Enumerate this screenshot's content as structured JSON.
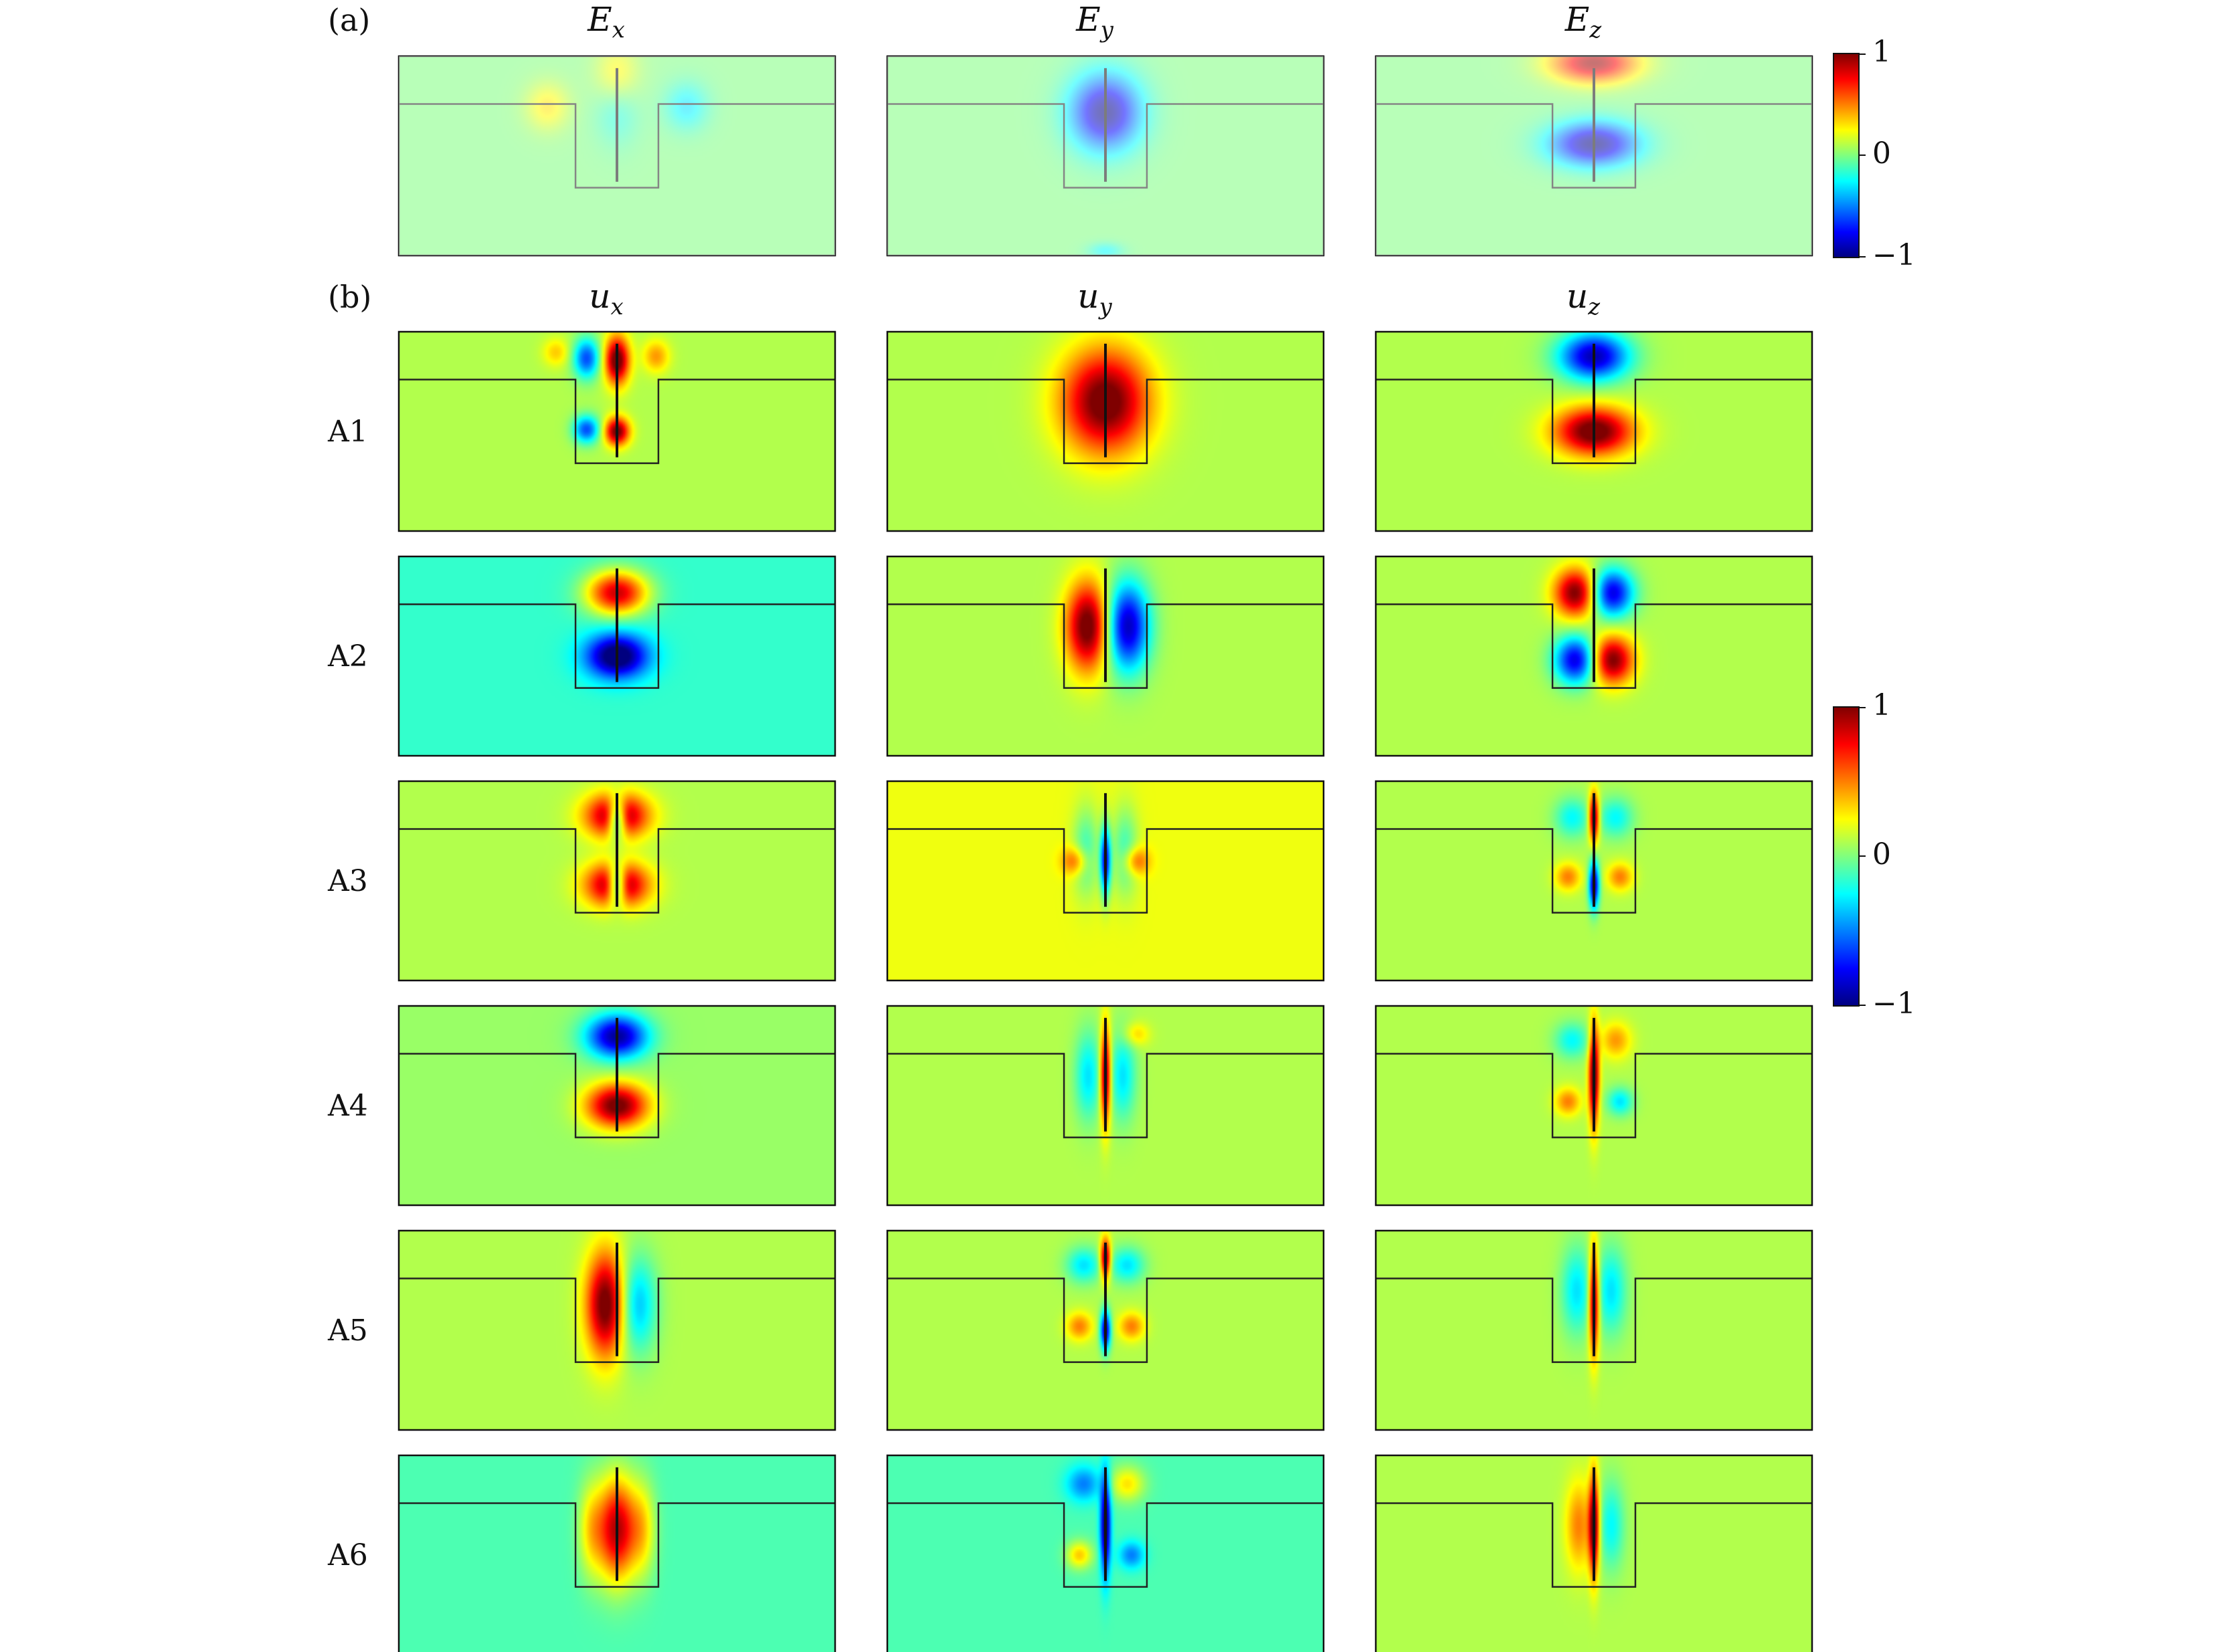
{
  "panel_a": {
    "label": "(a)",
    "columns": [
      {
        "var": "E",
        "sub": "x"
      },
      {
        "var": "E",
        "sub": "y"
      },
      {
        "var": "E",
        "sub": "z"
      }
    ],
    "fields": [
      [
        {
          "u": 0.0,
          "v": 0.1,
          "sx": 0.05,
          "sy": 0.16,
          "a": 0.35
        },
        {
          "u": 0.0,
          "v": 0.25,
          "sx": 0.05,
          "sy": 0.18,
          "a": -0.25
        },
        {
          "u": -0.16,
          "v": 0.25,
          "sx": 0.05,
          "sy": 0.12,
          "a": 0.3
        },
        {
          "u": 0.16,
          "v": 0.25,
          "sx": 0.05,
          "sy": 0.12,
          "a": -0.3
        }
      ],
      [
        {
          "u": 0.0,
          "v": 0.28,
          "sx": 0.08,
          "sy": 0.19,
          "a": -1.0
        },
        {
          "u": 0.0,
          "v": 0.98,
          "sx": 0.04,
          "sy": 0.04,
          "a": -0.25
        }
      ],
      [
        {
          "u": 0.0,
          "v": 0.03,
          "sx": 0.1,
          "sy": 0.1,
          "a": 0.95
        },
        {
          "u": 0.0,
          "v": 0.44,
          "sx": 0.1,
          "sy": 0.11,
          "a": -1.0
        }
      ]
    ],
    "background": [
      0.0,
      0.0,
      0.0
    ],
    "colorbar": {
      "max_label": "1",
      "mid_label": "0",
      "min_label": "−1"
    }
  },
  "panel_b": {
    "label": "(b)",
    "columns": [
      {
        "var": "u",
        "sub": "x"
      },
      {
        "var": "u",
        "sub": "y"
      },
      {
        "var": "u",
        "sub": "z"
      }
    ],
    "rows": [
      {
        "label": "A1",
        "background": [
          0.1,
          0.1,
          0.1
        ],
        "fields": [
          [
            {
              "u": 0.0,
              "v": 0.14,
              "sx": 0.028,
              "sy": 0.12,
              "a": 1.0
            },
            {
              "u": 0.0,
              "v": 0.5,
              "sx": 0.028,
              "sy": 0.07,
              "a": 0.95
            },
            {
              "u": -0.07,
              "v": 0.13,
              "sx": 0.03,
              "sy": 0.1,
              "a": -0.7
            },
            {
              "u": -0.07,
              "v": 0.49,
              "sx": 0.03,
              "sy": 0.07,
              "a": -0.7
            },
            {
              "u": 0.09,
              "v": 0.12,
              "sx": 0.03,
              "sy": 0.08,
              "a": 0.35
            },
            {
              "u": -0.14,
              "v": 0.1,
              "sx": 0.03,
              "sy": 0.07,
              "a": 0.25
            }
          ],
          [
            {
              "u": 0.0,
              "v": 0.35,
              "sx": 0.1,
              "sy": 0.26,
              "a": 1.0
            }
          ],
          [
            {
              "u": 0.0,
              "v": 0.12,
              "sx": 0.08,
              "sy": 0.12,
              "a": -1.0
            },
            {
              "u": 0.0,
              "v": 0.5,
              "sx": 0.09,
              "sy": 0.12,
              "a": 1.0
            }
          ]
        ]
      },
      {
        "label": "A2",
        "background": [
          -0.15,
          0.1,
          0.1
        ],
        "fields": [
          [
            {
              "u": 0.0,
              "v": 0.18,
              "sx": 0.07,
              "sy": 0.11,
              "a": 1.0
            },
            {
              "u": 0.0,
              "v": 0.5,
              "sx": 0.07,
              "sy": 0.11,
              "a": -1.0
            }
          ],
          [
            {
              "u": -0.04,
              "v": 0.35,
              "sx": 0.05,
              "sy": 0.22,
              "a": 1.0
            },
            {
              "u": 0.05,
              "v": 0.35,
              "sx": 0.05,
              "sy": 0.22,
              "a": -1.0
            }
          ],
          [
            {
              "u": -0.04,
              "v": 0.18,
              "sx": 0.05,
              "sy": 0.12,
              "a": 0.95
            },
            {
              "u": 0.04,
              "v": 0.18,
              "sx": 0.05,
              "sy": 0.12,
              "a": -0.95
            },
            {
              "u": -0.04,
              "v": 0.52,
              "sx": 0.05,
              "sy": 0.12,
              "a": -0.95
            },
            {
              "u": 0.04,
              "v": 0.52,
              "sx": 0.05,
              "sy": 0.12,
              "a": 0.95
            }
          ]
        ]
      },
      {
        "label": "A3",
        "background": [
          0.1,
          0.22,
          0.1
        ],
        "fields": [
          [
            {
              "u": 0.0,
              "v": 0.17,
              "sx": 0.07,
              "sy": 0.11,
              "a": 1.0
            },
            {
              "u": 0.0,
              "v": 0.52,
              "sx": 0.07,
              "sy": 0.11,
              "a": 1.0
            },
            {
              "u": 0.0,
              "v": 0.18,
              "sx": 0.022,
              "sy": 0.1,
              "a": -1.0
            },
            {
              "u": 0.0,
              "v": 0.52,
              "sx": 0.022,
              "sy": 0.1,
              "a": -1.0
            }
          ],
          [
            {
              "u": -0.045,
              "v": 0.35,
              "sx": 0.03,
              "sy": 0.22,
              "a": -0.35
            },
            {
              "u": 0.045,
              "v": 0.35,
              "sx": 0.03,
              "sy": 0.22,
              "a": -0.35
            },
            {
              "u": 0.0,
              "v": 0.4,
              "sx": 0.012,
              "sy": 0.17,
              "a": -0.95
            },
            {
              "u": -0.07,
              "v": 0.4,
              "sx": 0.03,
              "sy": 0.07,
              "a": 0.4
            },
            {
              "u": 0.07,
              "v": 0.4,
              "sx": 0.03,
              "sy": 0.07,
              "a": 0.4
            }
          ],
          [
            {
              "u": 0.0,
              "v": 0.18,
              "sx": 0.012,
              "sy": 0.12,
              "a": 1.0
            },
            {
              "u": 0.0,
              "v": 0.52,
              "sx": 0.012,
              "sy": 0.12,
              "a": -1.0
            },
            {
              "u": -0.05,
              "v": 0.18,
              "sx": 0.04,
              "sy": 0.1,
              "a": -0.35
            },
            {
              "u": 0.05,
              "v": 0.18,
              "sx": 0.04,
              "sy": 0.1,
              "a": -0.35
            },
            {
              "u": -0.06,
              "v": 0.48,
              "sx": 0.03,
              "sy": 0.07,
              "a": 0.4
            },
            {
              "u": 0.06,
              "v": 0.48,
              "sx": 0.03,
              "sy": 0.07,
              "a": 0.4
            }
          ]
        ]
      },
      {
        "label": "A4",
        "background": [
          0.05,
          0.1,
          0.1
        ],
        "fields": [
          [
            {
              "u": 0.0,
              "v": 0.15,
              "sx": 0.07,
              "sy": 0.11,
              "a": -1.0
            },
            {
              "u": 0.0,
              "v": 0.5,
              "sx": 0.07,
              "sy": 0.11,
              "a": 1.0
            }
          ],
          [
            {
              "u": 0.0,
              "v": 0.35,
              "sx": 0.012,
              "sy": 0.24,
              "a": 1.0
            },
            {
              "u": -0.04,
              "v": 0.35,
              "sx": 0.03,
              "sy": 0.22,
              "a": -0.4
            },
            {
              "u": 0.04,
              "v": 0.35,
              "sx": 0.03,
              "sy": 0.22,
              "a": -0.4
            },
            {
              "u": 0.07,
              "v": 0.14,
              "sx": 0.03,
              "sy": 0.06,
              "a": 0.25
            }
          ],
          [
            {
              "u": 0.0,
              "v": 0.35,
              "sx": 0.012,
              "sy": 0.25,
              "a": 1.0
            },
            {
              "u": -0.05,
              "v": 0.17,
              "sx": 0.04,
              "sy": 0.09,
              "a": -0.35
            },
            {
              "u": 0.05,
              "v": 0.17,
              "sx": 0.035,
              "sy": 0.09,
              "a": 0.35
            },
            {
              "u": -0.06,
              "v": 0.48,
              "sx": 0.03,
              "sy": 0.07,
              "a": 0.4
            },
            {
              "u": 0.06,
              "v": 0.48,
              "sx": 0.03,
              "sy": 0.07,
              "a": -0.4
            }
          ]
        ]
      },
      {
        "label": "A5",
        "background": [
          0.1,
          0.1,
          0.1
        ],
        "fields": [
          [
            {
              "u": -0.025,
              "v": 0.37,
              "sx": 0.045,
              "sy": 0.26,
              "a": 1.0
            },
            {
              "u": 0.045,
              "v": 0.37,
              "sx": 0.045,
              "sy": 0.24,
              "a": -0.5
            }
          ],
          [
            {
              "u": 0.0,
              "v": 0.14,
              "sx": 0.012,
              "sy": 0.1,
              "a": 1.0
            },
            {
              "u": 0.0,
              "v": 0.5,
              "sx": 0.012,
              "sy": 0.1,
              "a": -1.0
            },
            {
              "u": -0.05,
              "v": 0.17,
              "sx": 0.04,
              "sy": 0.09,
              "a": -0.4
            },
            {
              "u": 0.05,
              "v": 0.17,
              "sx": 0.04,
              "sy": 0.09,
              "a": -0.4
            },
            {
              "u": -0.06,
              "v": 0.48,
              "sx": 0.03,
              "sy": 0.07,
              "a": 0.4
            },
            {
              "u": 0.06,
              "v": 0.48,
              "sx": 0.03,
              "sy": 0.07,
              "a": 0.4
            }
          ],
          [
            {
              "u": 0.0,
              "v": 0.35,
              "sx": 0.012,
              "sy": 0.26,
              "a": 1.0
            },
            {
              "u": -0.04,
              "v": 0.3,
              "sx": 0.035,
              "sy": 0.22,
              "a": -0.4
            },
            {
              "u": 0.04,
              "v": 0.3,
              "sx": 0.035,
              "sy": 0.22,
              "a": -0.4
            }
          ]
        ]
      },
      {
        "label": "A6",
        "background": [
          -0.1,
          -0.1,
          0.1
        ],
        "fields": [
          [
            {
              "u": 0.0,
              "v": 0.37,
              "sx": 0.045,
              "sy": 0.26,
              "a": 1.0
            },
            {
              "u": -0.06,
              "v": 0.37,
              "sx": 0.03,
              "sy": 0.24,
              "a": 0.35
            },
            {
              "u": 0.06,
              "v": 0.37,
              "sx": 0.03,
              "sy": 0.24,
              "a": 0.35
            }
          ],
          [
            {
              "u": 0.0,
              "v": 0.35,
              "sx": 0.012,
              "sy": 0.25,
              "a": -0.95
            },
            {
              "u": -0.05,
              "v": 0.14,
              "sx": 0.04,
              "sy": 0.09,
              "a": -0.4
            },
            {
              "u": 0.05,
              "v": 0.14,
              "sx": 0.04,
              "sy": 0.09,
              "a": 0.4
            },
            {
              "u": -0.06,
              "v": 0.5,
              "sx": 0.03,
              "sy": 0.07,
              "a": 0.45
            },
            {
              "u": 0.06,
              "v": 0.5,
              "sx": 0.03,
              "sy": 0.07,
              "a": -0.4
            }
          ],
          [
            {
              "u": 0.0,
              "v": 0.35,
              "sx": 0.012,
              "sy": 0.25,
              "a": 1.0
            },
            {
              "u": -0.035,
              "v": 0.35,
              "sx": 0.03,
              "sy": 0.22,
              "a": 0.4
            },
            {
              "u": 0.04,
              "v": 0.35,
              "sx": 0.03,
              "sy": 0.22,
              "a": -0.35
            }
          ]
        ]
      }
    ],
    "colorbar": {
      "max_label": "1",
      "mid_label": "0",
      "min_label": "−1"
    }
  },
  "colormap": {
    "name": "jet",
    "stops": [
      "#00007f",
      "#0000ff",
      "#007fff",
      "#00ffff",
      "#7fff7f",
      "#ffff00",
      "#ff7f00",
      "#ff0000",
      "#7f0000"
    ]
  }
}
